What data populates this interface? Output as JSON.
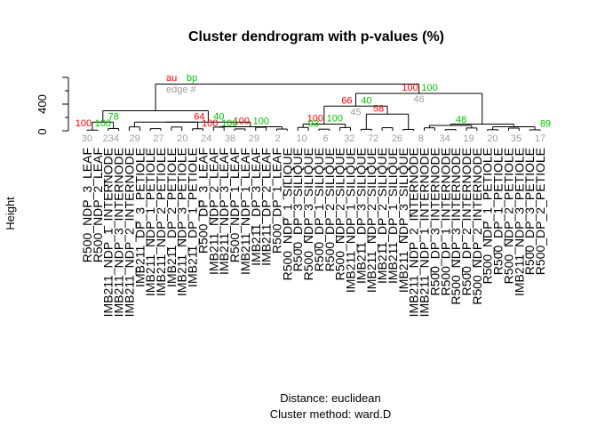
{
  "chart_data": {
    "type": "dendrogram",
    "title": "Cluster dendrogram with p-values (%)",
    "ylabel": "Height",
    "xlabel_line1": "Distance:  euclidean",
    "xlabel_line2": "Cluster method: ward.D",
    "ylim": [
      0,
      800
    ],
    "yticks": [
      0,
      400
    ],
    "legend": {
      "au": "au",
      "bp": "bp",
      "edge": "edge #"
    },
    "colors": {
      "au": "#ff0000",
      "bp": "#00c000",
      "edge": "#a0a0a0",
      "branch": "#000000"
    },
    "leaves": [
      "R500_NDP_3_LEAF",
      "R500_NDP_2_LEAF",
      "IMB211_NDP_1_INTERNODE",
      "IMB211_NDP_3_INTERNODE",
      "IMB211_NDP_2_INTERNODE",
      "IMB211_DP_3_PETIOLE",
      "IMB211_NDP_1_PETIOLE",
      "IMB211_NDP_2_PETIOLE",
      "IMB211_DP_2_PETIOLE",
      "IMB211_NDP_3_PETIOLE",
      "IMB211_DP_1_PETIOLE",
      "R500_DP_3_LEAF",
      "IMB211_NDP_2_LEAF",
      "IMB211_NDP_3_LEAF",
      "R500_NDP_1_LEAF",
      "IMB211_NDP_1_LEAF",
      "IMB211_DP_3_LEAF",
      "IMB211_DP_2_LEAF",
      "R500_DP_1_LEAF",
      "R500_NDP_1_SILIQUE",
      "R500_DP_3_SILIQUE",
      "R500_NDP_3_SILIQUE",
      "R500_DP_1_SILIQUE",
      "R500_DP_2_SILIQUE",
      "R500_NDP_2_SILIQUE",
      "IMB211_NDP_1_SILIQUE",
      "IMB211_DP_3_SILIQUE",
      "IMB211_NDP_2_SILIQUE",
      "IMB211_DP_2_SILIQUE",
      "IMB211_DP_1_SILIQUE",
      "IMB211_NDP_3_SILIQUE",
      "IMB211_NDP_2_INTERNODE",
      "IMB211_NDP_1_INTERNODE",
      "R500_DP_3_INTERNODE",
      "R500_DP_1_INTERNODE",
      "R500_NDP_3_INTERNODE",
      "R500_DP_2_INTERNODE",
      "R500_NDP_2_INTERNODE",
      "R500_NDP_1_PETIOLE",
      "R500_DP_1_PETIOLE",
      "R500_NDP_2_PETIOLE",
      "IMB211_NDP_3_PETIOLE",
      "R500_DP_3_PETIOLE",
      "R500_DP_2_PETIOLE"
    ],
    "nodes": [
      {
        "au": "100",
        "bp": "100",
        "edge": "46",
        "height": 560
      },
      {
        "au": "66",
        "bp": "40",
        "edge": "45",
        "height": 370
      },
      {
        "au": "",
        "bp": "",
        "edge": "",
        "height": 700
      },
      {
        "au": "100",
        "bp": "100",
        "edge": "",
        "height": 270
      },
      {
        "au": "58",
        "bp": "",
        "edge": "",
        "height": 250
      },
      {
        "au": "64",
        "bp": "40",
        "edge": "",
        "height": 130
      },
      {
        "au": "",
        "bp": "78",
        "edge": "",
        "height": 80
      },
      {
        "au": "100",
        "bp": "100",
        "edge": "",
        "height": 60
      },
      {
        "au": "",
        "bp": "48",
        "edge": "",
        "height": 60
      },
      {
        "au": "100",
        "bp": "100",
        "edge": "",
        "height": 30
      },
      {
        "au": "100",
        "bp": "100",
        "edge": "",
        "height": 30
      },
      {
        "au": "",
        "bp": "93",
        "edge": "",
        "height": 20
      },
      {
        "au": "",
        "bp": "89",
        "edge": "",
        "height": 20
      }
    ],
    "leaf_numbers": [
      "30",
      "234",
      "29",
      "27",
      "20",
      "24",
      "38",
      "29",
      "2",
      "10",
      "6",
      "32",
      "72",
      "26",
      "8",
      "34",
      "19",
      "20",
      "35",
      "17"
    ]
  }
}
